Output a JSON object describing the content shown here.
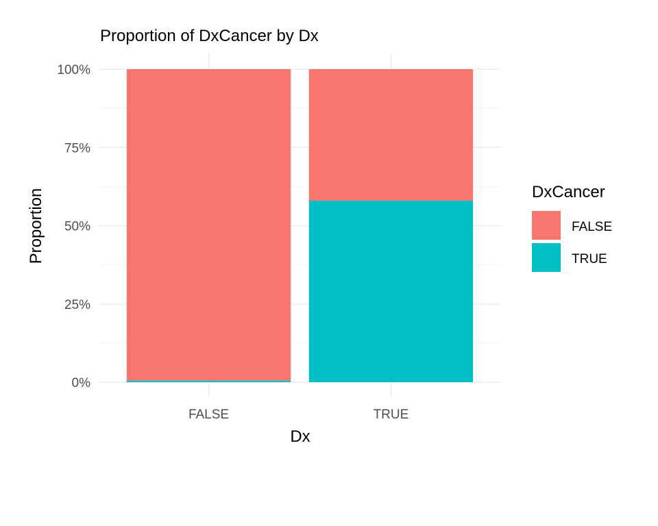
{
  "chart_data": {
    "type": "bar",
    "stacked": "proportion",
    "title": "Proportion of DxCancer by Dx",
    "xlabel": "Dx",
    "ylabel": "Proportion",
    "categories": [
      "FALSE",
      "TRUE"
    ],
    "series": [
      {
        "name": "FALSE",
        "color": "#F8766D",
        "values": [
          0.995,
          0.42
        ]
      },
      {
        "name": "TRUE",
        "color": "#00BFC4",
        "values": [
          0.005,
          0.58
        ]
      }
    ],
    "ylim": [
      0,
      1
    ],
    "yticks": [
      0,
      0.25,
      0.5,
      0.75,
      1
    ],
    "ytick_labels": [
      "0%",
      "25%",
      "50%",
      "75%",
      "100%"
    ],
    "grid": true,
    "legend": {
      "title": "DxCancer",
      "placement": "right"
    }
  }
}
